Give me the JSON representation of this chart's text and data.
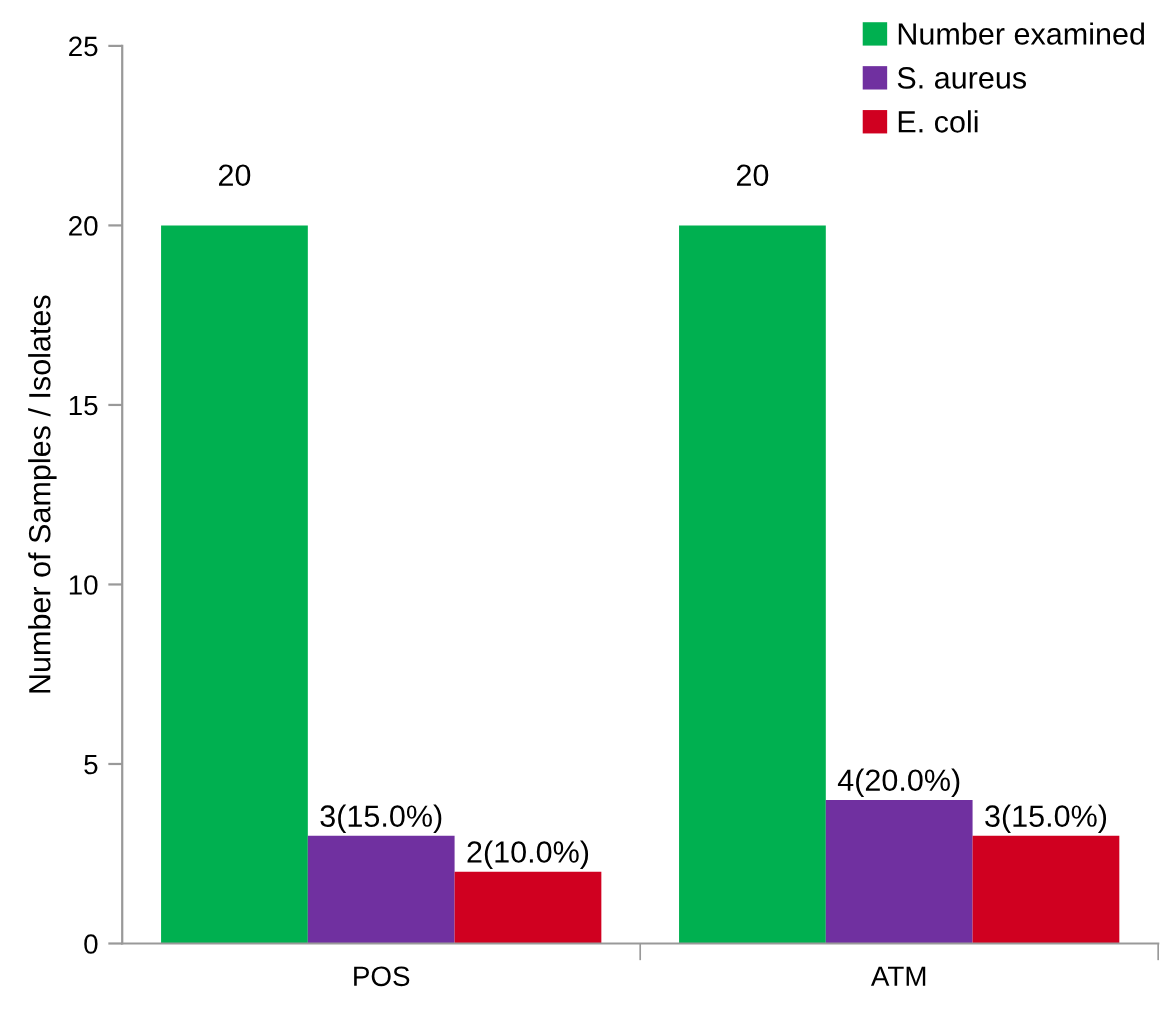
{
  "chart_data": {
    "type": "bar",
    "ylabel": "Number of Samples / Isolates",
    "categories": [
      "POS",
      "ATM"
    ],
    "series": [
      {
        "name": "Number examined",
        "color": "#00b050",
        "values": [
          20,
          20
        ],
        "value_labels": [
          "20",
          "20"
        ]
      },
      {
        "name": "S. aureus",
        "color": "#7030a0",
        "values": [
          3,
          4
        ],
        "value_labels": [
          "3(15.0%)",
          "4(20.0%)"
        ]
      },
      {
        "name": "E. coli",
        "color": "#d00020",
        "values": [
          2,
          3
        ],
        "value_labels": [
          "2(10.0%)",
          "3(15.0%)"
        ]
      }
    ],
    "ylim": [
      0,
      25
    ],
    "yticks": [
      0,
      5,
      10,
      15,
      20,
      25
    ],
    "grid": false,
    "legend": "top right"
  }
}
